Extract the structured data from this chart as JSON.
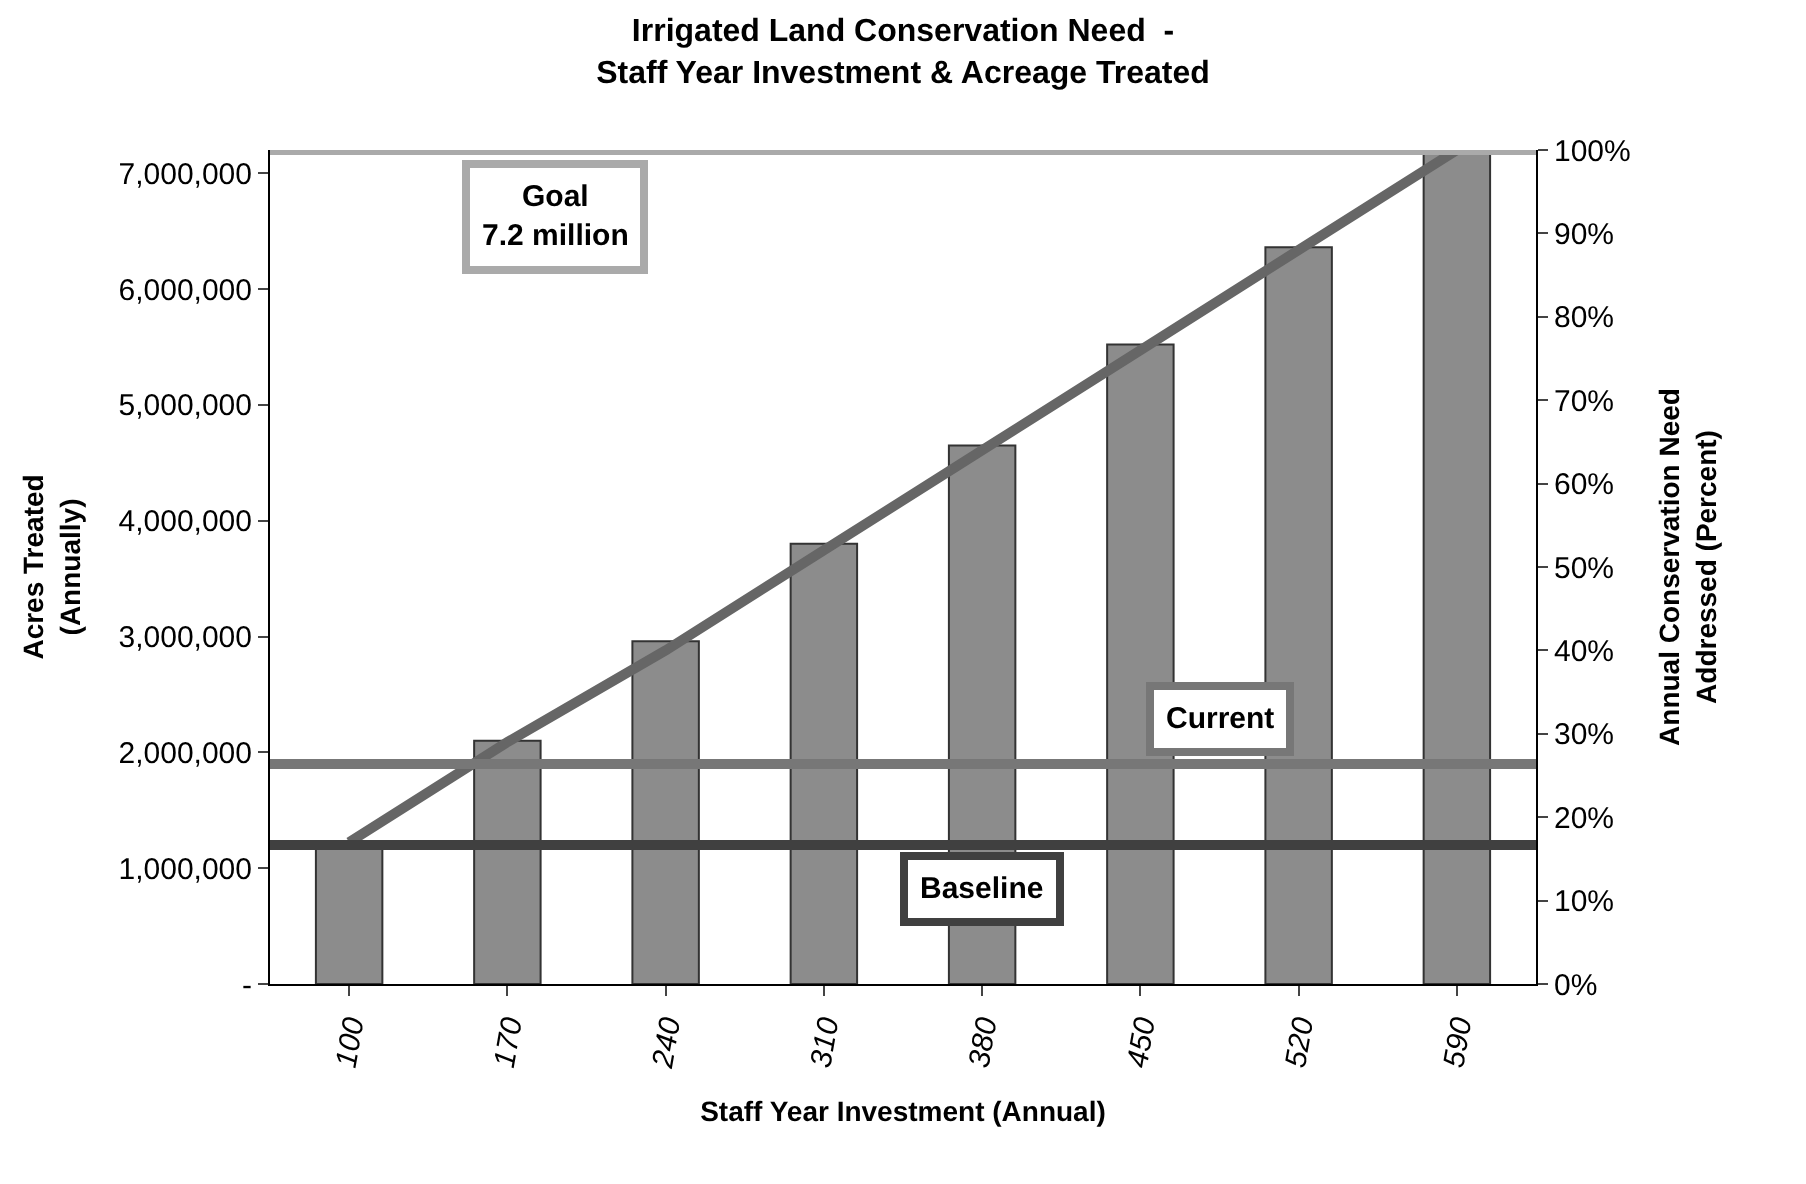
{
  "chart_data": {
    "type": "bar",
    "title": "Irrigated Land Conservation Need  -\nStaff Year Investment & Acreage Treated",
    "xlabel": "Staff Year Investment (Annual)",
    "ylabel": "Acres Treated\n(Annually)",
    "y2label": "Annual Conservation Need\nAddressed (Percent)",
    "categories": [
      "100",
      "170",
      "240",
      "310",
      "380",
      "450",
      "520",
      "590"
    ],
    "series": [
      {
        "color": "#8c8c8c",
        "values": [
          1220000,
          2100000,
          2960000,
          3800000,
          4650000,
          5520000,
          6360000,
          7200000
        ]
      },
      {
        "type": "line",
        "axis": "y2",
        "color": "#666666",
        "values": [
          17,
          29,
          40,
          52,
          64,
          76,
          88,
          100
        ]
      }
    ],
    "ylim": [
      0,
      7200000
    ],
    "yticks": [
      {
        "value": 0,
        "label": "-"
      },
      {
        "value": 1000000,
        "label": "1,000,000"
      },
      {
        "value": 2000000,
        "label": "2,000,000"
      },
      {
        "value": 3000000,
        "label": "3,000,000"
      },
      {
        "value": 4000000,
        "label": "4,000,000"
      },
      {
        "value": 5000000,
        "label": "5,000,000"
      },
      {
        "value": 6000000,
        "label": "6,000,000"
      },
      {
        "value": 7000000,
        "label": "7,000,000"
      }
    ],
    "y2lim": [
      0,
      100
    ],
    "y2ticks": [
      {
        "value": 0,
        "label": "0%"
      },
      {
        "value": 10,
        "label": "10%"
      },
      {
        "value": 20,
        "label": "20%"
      },
      {
        "value": 30,
        "label": "30%"
      },
      {
        "value": 40,
        "label": "40%"
      },
      {
        "value": 50,
        "label": "50%"
      },
      {
        "value": 60,
        "label": "60%"
      },
      {
        "value": 70,
        "label": "70%"
      },
      {
        "value": 80,
        "label": "80%"
      },
      {
        "value": 90,
        "label": "90%"
      },
      {
        "value": 100,
        "label": "100%"
      }
    ],
    "ref_lines": [
      {
        "axis": "y",
        "value": 7200000,
        "label": "Goal\n7.2 million",
        "color": "#aaaaaa"
      },
      {
        "axis": "y",
        "value": 1900000,
        "label": "Current",
        "color": "#777777"
      },
      {
        "axis": "y",
        "value": 1200000,
        "label": "Baseline",
        "color": "#404040"
      }
    ],
    "legend": false
  }
}
